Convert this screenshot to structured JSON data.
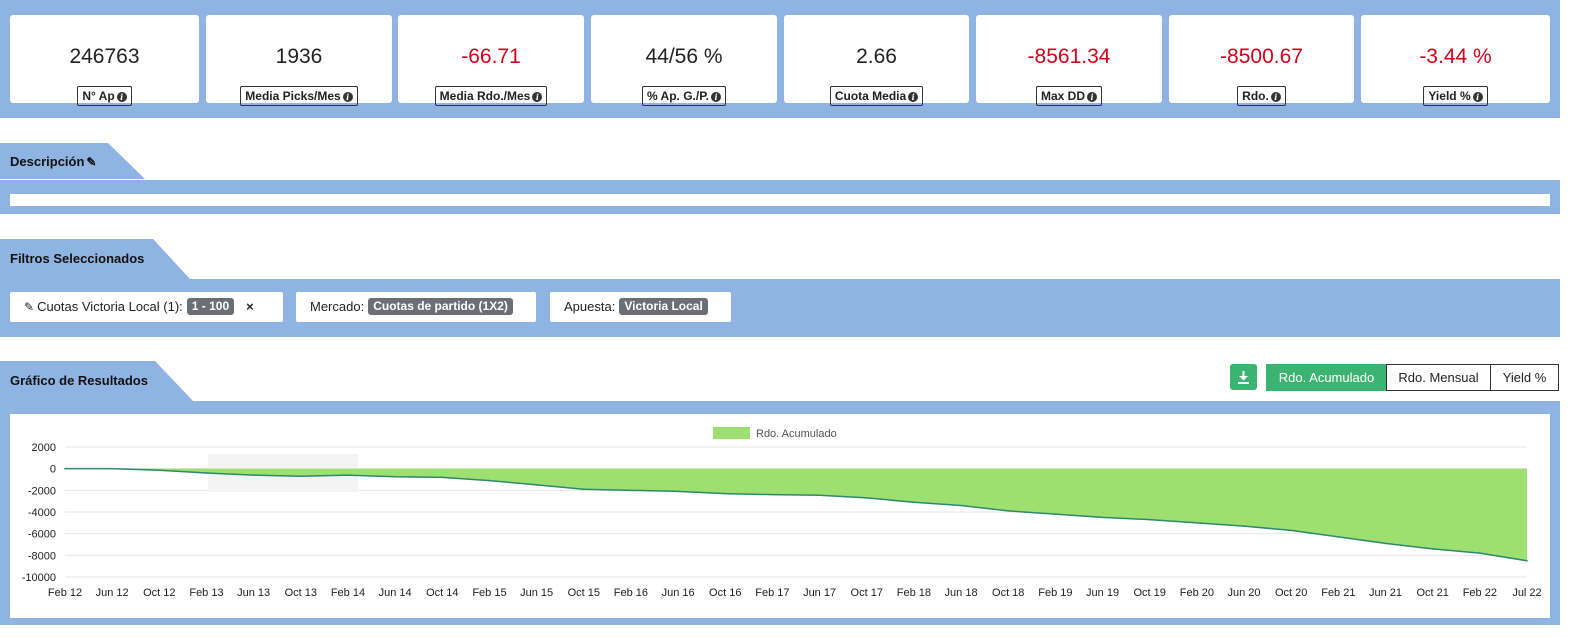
{
  "stats": [
    {
      "value": "246763",
      "label": "N° Ap",
      "negative": false
    },
    {
      "value": "1936",
      "label": "Media Picks/Mes",
      "negative": false
    },
    {
      "value": "-66.71",
      "label": "Media Rdo./Mes",
      "negative": true
    },
    {
      "value": "44/56 %",
      "label": "% Ap. G./P.",
      "negative": false
    },
    {
      "value": "2.66",
      "label": "Cuota Media",
      "negative": false
    },
    {
      "value": "-8561.34",
      "label": "Max DD",
      "negative": true
    },
    {
      "value": "-8500.67",
      "label": "Rdo.",
      "negative": true
    },
    {
      "value": "-3.44 %",
      "label": "Yield %",
      "negative": true
    }
  ],
  "description": {
    "title": "Descripción"
  },
  "filters": {
    "title": "Filtros Seleccionados",
    "items": [
      {
        "label": "Cuotas Victoria Local (1):",
        "value": "1 - 100"
      },
      {
        "label": "Mercado:",
        "value": "Cuotas de partido (1X2)"
      },
      {
        "label": "Apuesta:",
        "value": "Victoria Local"
      }
    ]
  },
  "results": {
    "title": "Gráfico de Resultados",
    "download_icon": "download-icon",
    "toggles": [
      "Rdo. Acumulado",
      "Rdo. Mensual",
      "Yield %"
    ],
    "active_toggle": "Rdo. Acumulado"
  },
  "colors": {
    "band": "#8fb4e3",
    "accent": "#3cb371",
    "negative": "#d0021b",
    "area": "#9ee070",
    "line": "#2b8a6b"
  },
  "chart_data": {
    "type": "area",
    "title": "",
    "xlabel": "",
    "ylabel": "",
    "legend": [
      "Rdo. Acumulado"
    ],
    "legend_position": "top-center",
    "grid": true,
    "ylim": [
      -10000,
      2000
    ],
    "yticks": [
      "2000",
      "0",
      "-2000",
      "-4000",
      "-6000",
      "-8000",
      "-10000"
    ],
    "xticks": [
      "Feb 12",
      "Jun 12",
      "Oct 12",
      "Feb 13",
      "Jun 13",
      "Oct 13",
      "Feb 14",
      "Jun 14",
      "Oct 14",
      "Feb 15",
      "Jun 15",
      "Oct 15",
      "Feb 16",
      "Jun 16",
      "Oct 16",
      "Feb 17",
      "Jun 17",
      "Oct 17",
      "Feb 18",
      "Jun 18",
      "Oct 18",
      "Feb 19",
      "Jun 19",
      "Oct 19",
      "Feb 20",
      "Jun 20",
      "Oct 20",
      "Feb 21",
      "Jun 21",
      "Oct 21",
      "Feb 22",
      "Jul 22"
    ],
    "series": [
      {
        "name": "Rdo. Acumulado",
        "x": [
          "Feb 12",
          "Jun 12",
          "Oct 12",
          "Feb 13",
          "Jun 13",
          "Oct 13",
          "Feb 14",
          "Jun 14",
          "Oct 14",
          "Feb 15",
          "Jun 15",
          "Oct 15",
          "Feb 16",
          "Jun 16",
          "Oct 16",
          "Feb 17",
          "Jun 17",
          "Oct 17",
          "Feb 18",
          "Jun 18",
          "Oct 18",
          "Feb 19",
          "Jun 19",
          "Oct 19",
          "Feb 20",
          "Jun 20",
          "Oct 20",
          "Feb 21",
          "Jun 21",
          "Oct 21",
          "Feb 22",
          "Jul 22"
        ],
        "values": [
          0,
          0,
          -150,
          -400,
          -600,
          -700,
          -600,
          -750,
          -800,
          -1100,
          -1500,
          -1900,
          -2000,
          -2100,
          -2300,
          -2400,
          -2450,
          -2700,
          -3100,
          -3400,
          -3900,
          -4200,
          -4500,
          -4700,
          -5000,
          -5300,
          -5700,
          -6300,
          -6900,
          -7400,
          -7800,
          -8500
        ]
      }
    ]
  }
}
